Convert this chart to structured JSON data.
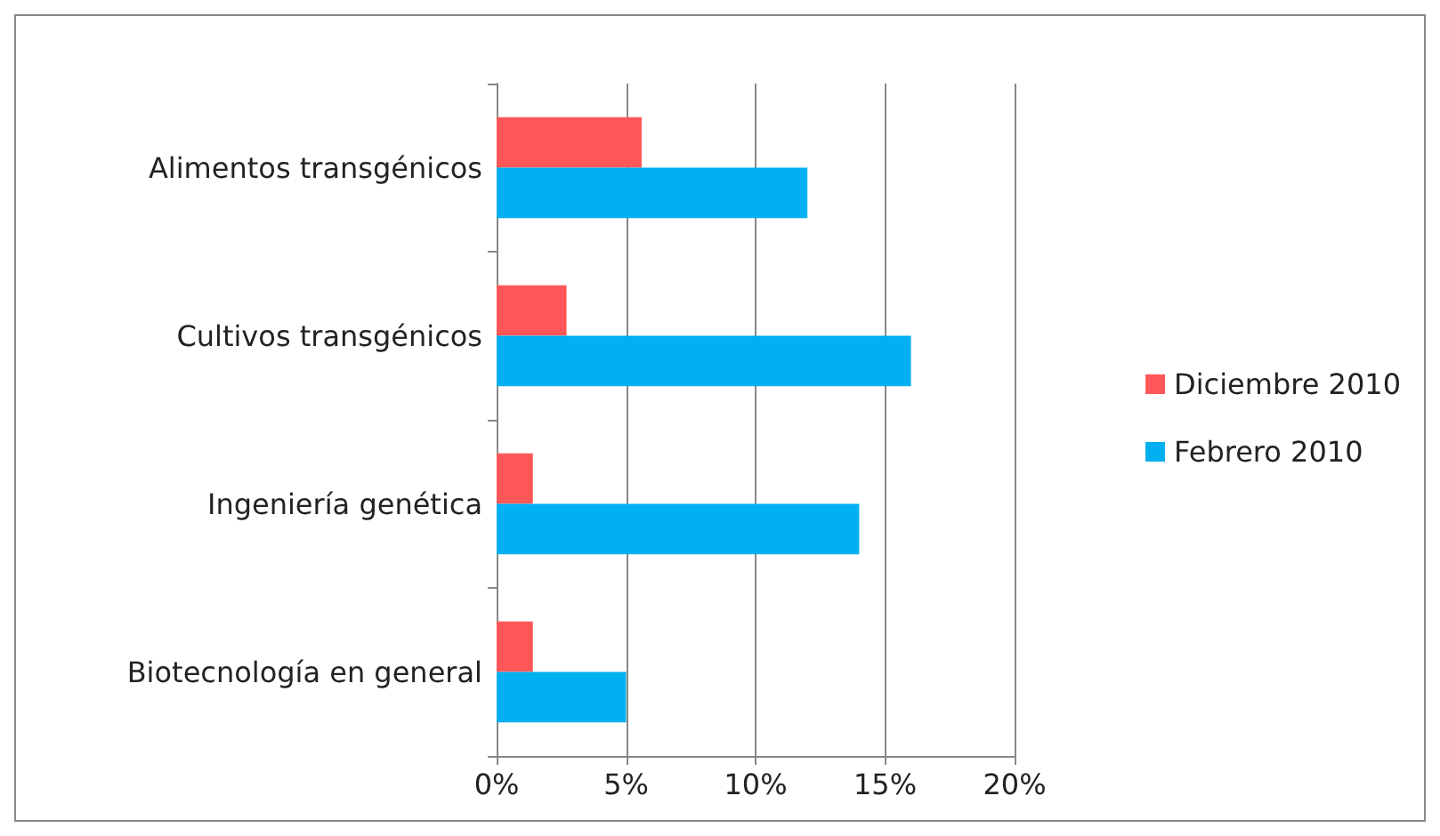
{
  "chart_data": {
    "type": "bar",
    "orientation": "horizontal",
    "categories": [
      "Alimentos transgénicos",
      "Cultivos transgénicos",
      "Ingeniería genética",
      "Biotecnología en general"
    ],
    "series": [
      {
        "name": "Diciembre 2010",
        "color": "#ff5757",
        "values": [
          5.6,
          2.7,
          1.4,
          1.4
        ]
      },
      {
        "name": "Febrero 2010",
        "color": "#00b0f0",
        "values": [
          12,
          16,
          14,
          5
        ]
      }
    ],
    "xlim": [
      0,
      20
    ],
    "xticks": [
      {
        "value": 0,
        "label": "0%"
      },
      {
        "value": 5,
        "label": "5%"
      },
      {
        "value": 10,
        "label": "10%"
      },
      {
        "value": 15,
        "label": "15%"
      },
      {
        "value": 20,
        "label": "20%"
      }
    ],
    "grid": "x",
    "legend": "right"
  }
}
